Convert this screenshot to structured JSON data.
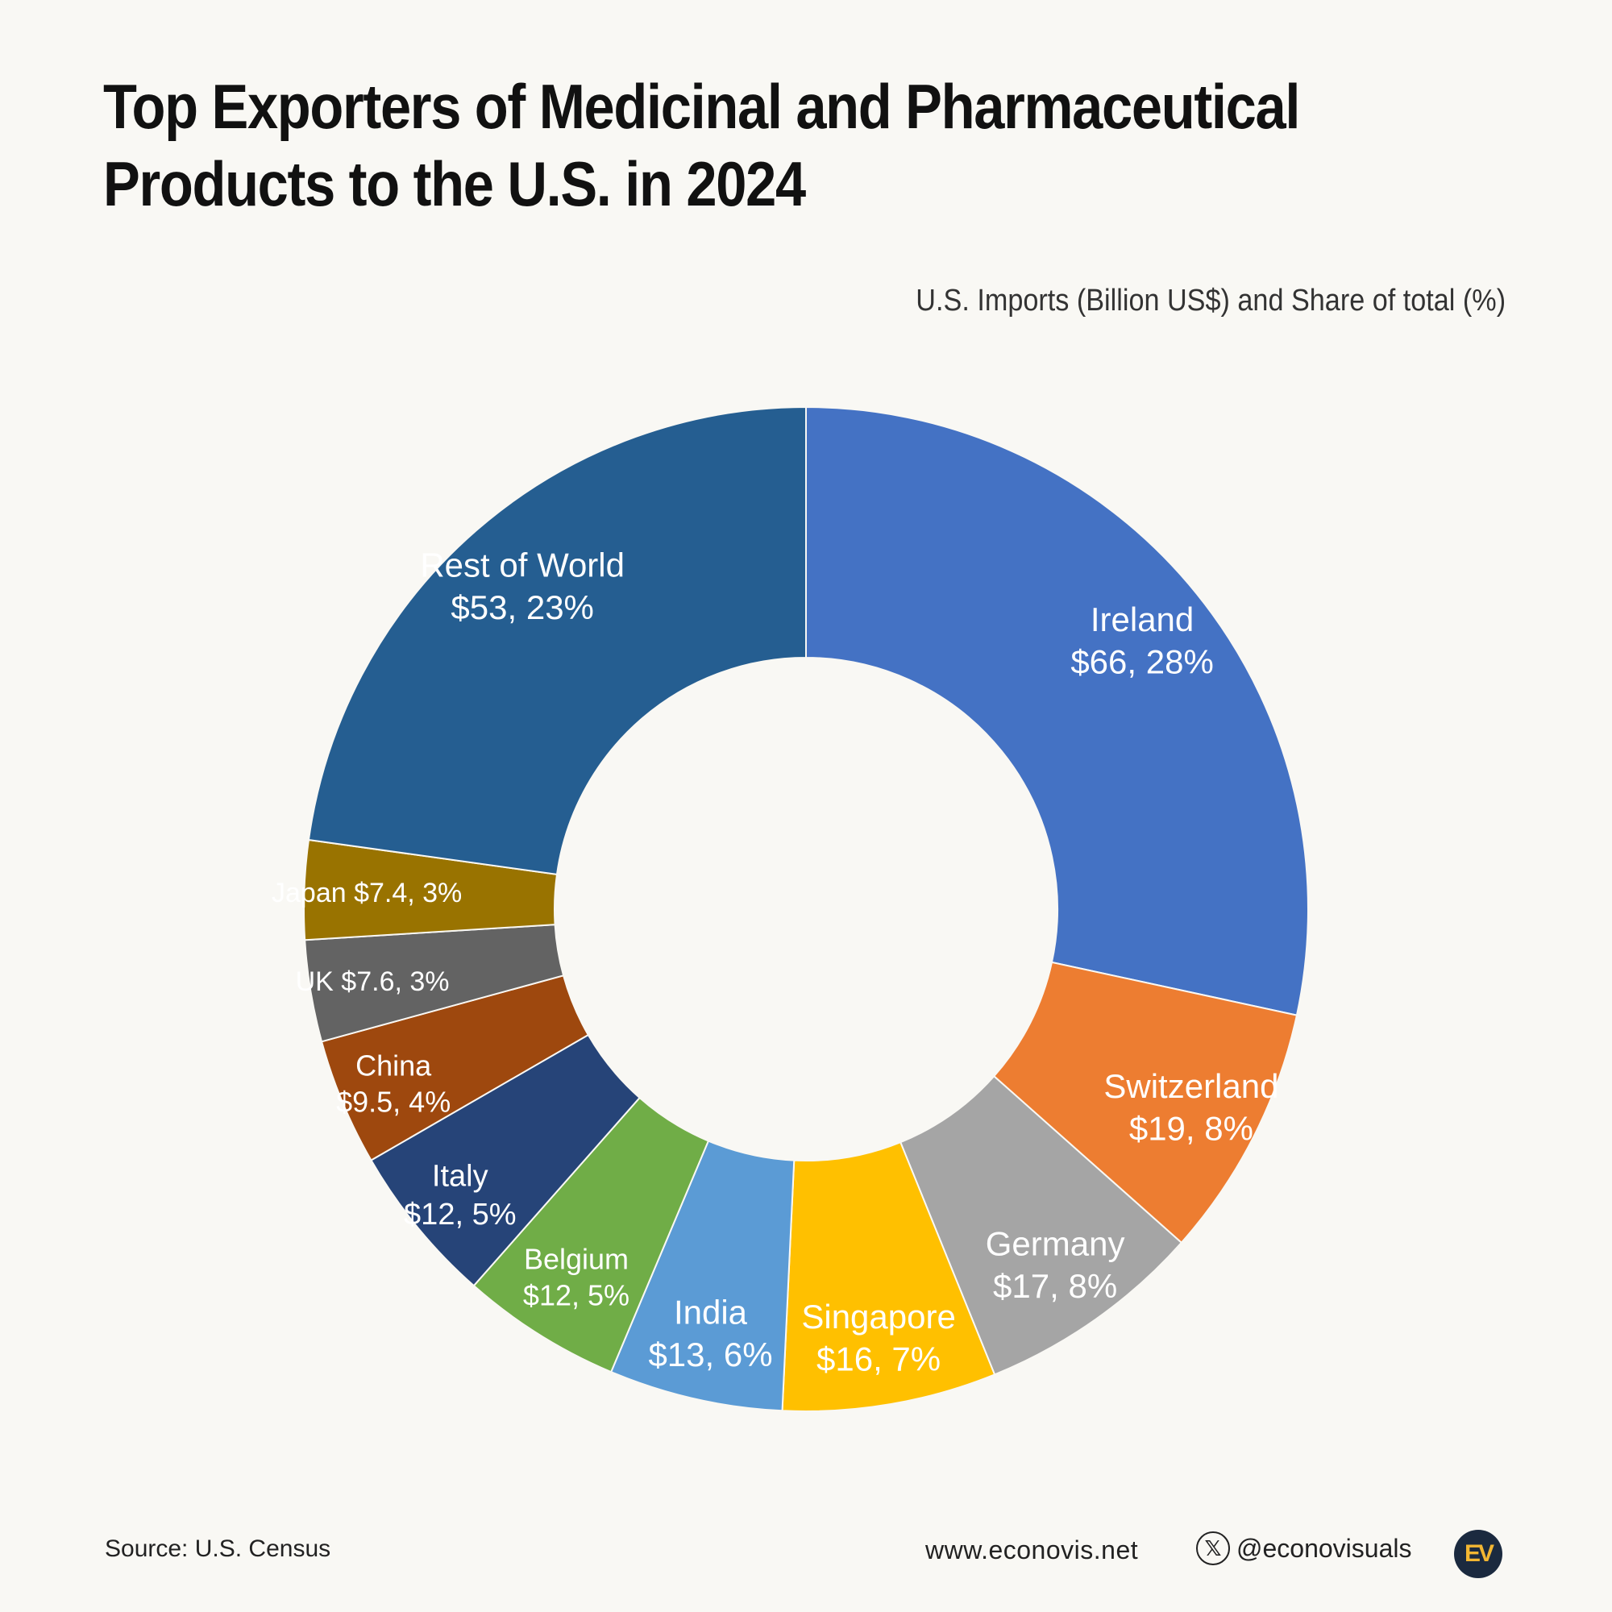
{
  "title_line1": "Top Exporters of Medicinal and Pharmaceutical",
  "title_line2": "Products to the U.S. in 2024",
  "subtitle": "U.S. Imports (Billion US$) and Share of total (%)",
  "footer": {
    "source": "Source: U.S. Census",
    "website": "www.econovis.net",
    "handle": "@econovisuals",
    "x_icon": "x-logo-icon",
    "logo_text": "EV"
  },
  "chart_data": {
    "type": "pie",
    "style": "donut",
    "unit": "Billion US$",
    "slices": [
      {
        "name": "Ireland",
        "value": 66,
        "share": 28,
        "label": "Ireland",
        "value_label": "$66, 28%",
        "color": "#4472c4"
      },
      {
        "name": "Switzerland",
        "value": 19,
        "share": 8,
        "label": "Switzerland",
        "value_label": "$19, 8%",
        "color": "#ed7d31"
      },
      {
        "name": "Germany",
        "value": 17,
        "share": 8,
        "label": "Germany",
        "value_label": "$17, 8%",
        "color": "#a5a5a5"
      },
      {
        "name": "Singapore",
        "value": 16,
        "share": 7,
        "label": "Singapore",
        "value_label": "$16, 7%",
        "color": "#ffc000"
      },
      {
        "name": "India",
        "value": 13,
        "share": 6,
        "label": "India",
        "value_label": "$13, 6%",
        "color": "#5b9bd5"
      },
      {
        "name": "Belgium",
        "value": 12,
        "share": 5,
        "label": "Belgium",
        "value_label": "$12, 5%",
        "color": "#70ad47"
      },
      {
        "name": "Italy",
        "value": 12,
        "share": 5,
        "label": "Italy",
        "value_label": "$12, 5%",
        "color": "#264478"
      },
      {
        "name": "China",
        "value": 9.5,
        "share": 4,
        "label": "China",
        "value_label": "$9.5, 4%",
        "color": "#9e480e"
      },
      {
        "name": "UK",
        "value": 7.6,
        "share": 3,
        "label": "UK  $7.6, 3%",
        "value_label": "",
        "color": "#636363"
      },
      {
        "name": "Japan",
        "value": 7.4,
        "share": 3,
        "label": "Japan  $7.4, 3%",
        "value_label": "",
        "color": "#997300"
      },
      {
        "name": "Rest of World",
        "value": 53,
        "share": 23,
        "label": "Rest of World",
        "value_label": "$53, 23%",
        "color": "#255e91"
      }
    ]
  }
}
